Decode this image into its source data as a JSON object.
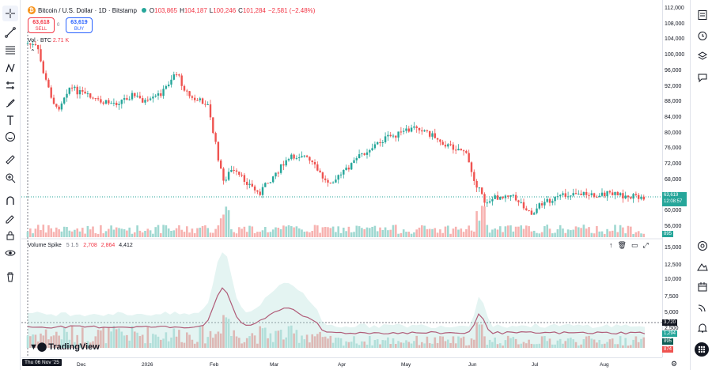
{
  "symbol": {
    "logo": "₿",
    "title": "Bitcoin / U.S. Dollar · 1D · Bitstamp",
    "ohlc": {
      "o_label": "O",
      "o": "103,865",
      "h_label": "H",
      "h": "104,187",
      "l_label": "L",
      "l": "100,246",
      "c_label": "C",
      "c": "101,284",
      "change": "−2,581 (−2.48%)"
    }
  },
  "trade": {
    "sell_price": "63,618",
    "sell_label": "SELL",
    "spread": "0",
    "buy_price": "63,619",
    "buy_label": "BUY"
  },
  "volume_legend": {
    "label": "Vol · BTC",
    "value": "2.71 K"
  },
  "pane2": {
    "title": "Volume Spike",
    "params": "5 1.5",
    "v1": "2,708",
    "v2": "2,864",
    "v3": "4,412"
  },
  "branding": {
    "name": "TradingView"
  },
  "price_scale": [
    "112,000",
    "108,000",
    "104,000",
    "100,000",
    "96,000",
    "92,000",
    "88,000",
    "84,000",
    "80,000",
    "76,000",
    "72,000",
    "68,000",
    "64,000",
    "60,000",
    "56,000"
  ],
  "pane2_scale": [
    "15,000",
    "12,500",
    "10,000",
    "7,500",
    "5,000",
    "2,500"
  ],
  "tags": {
    "last_price": "63,619",
    "countdown": "12:08:57",
    "vol_last": "895",
    "spike_level": "3,720",
    "spike_v1": "1,294",
    "spike_v2": "895",
    "spike_v3": "874"
  },
  "time_axis": {
    "cursor": "Thu 06 Nov '25",
    "labels": [
      "Dec",
      "2026",
      "Feb",
      "Mar",
      "Apr",
      "May",
      "Jun",
      "Jul",
      "Aug"
    ]
  },
  "colors": {
    "up": "#26a69a",
    "down": "#ef5350",
    "accent": "#2962ff"
  },
  "icons": {
    "left": [
      "crosshair-icon",
      "trend-line-icon",
      "fib-icon",
      "pattern-icon",
      "forecast-icon",
      "brush-icon",
      "text-icon",
      "emoji-icon",
      "ruler-icon",
      "zoom-icon",
      "magnet-icon",
      "lock-drawing-icon",
      "lock-icon",
      "eye-icon",
      "trash-icon"
    ],
    "right": [
      "watchlist-icon",
      "alert-clock-icon",
      "layers-icon",
      "chat-icon",
      "target-icon",
      "mountain-icon",
      "calendar-icon",
      "broadcast-icon",
      "bell-icon",
      "apps-icon"
    ]
  }
}
